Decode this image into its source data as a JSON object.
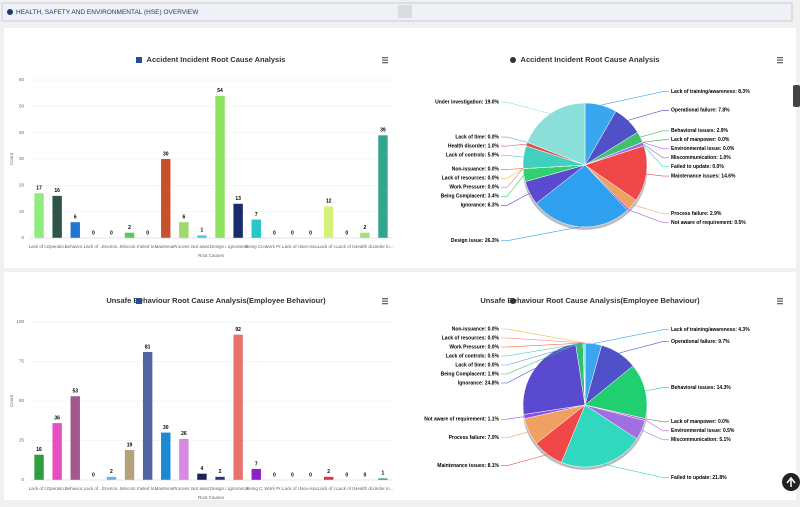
{
  "header": {
    "title": "HEALTH, SAFETY AND ENVIRONMENTAL (HSE) OVERVIEW"
  },
  "chart_data": [
    {
      "type": "bar",
      "title": "Accident Incident Root Cause Analysis",
      "x_label": "Root Causes",
      "y_label": "Count",
      "categories": [
        "Lack of t...",
        "Operatio...",
        "Behavior...",
        "Lack of ...",
        "Environ...",
        "Miscom...",
        "Failed to...",
        "Maintena...",
        "Process ...",
        "Not awar...",
        "Design i...",
        "Ignorance",
        "Being Co...",
        "Work Pr...",
        "Lack of r...",
        "Non-issu...",
        "Lack of c...",
        "Lack of t...",
        "Health di...",
        "Under in..."
      ],
      "values": [
        17,
        16,
        6,
        0,
        0,
        2,
        0,
        30,
        6,
        1,
        54,
        13,
        7,
        0,
        0,
        0,
        12,
        0,
        2,
        39
      ],
      "colors": [
        "#90ed7d",
        "#2f5546",
        "#1f77d0",
        "#999999",
        "#888888",
        "#5bc85b",
        "#aaaaaa",
        "#c9502c",
        "#9fd96a",
        "#4dc9e6",
        "#8fe35d",
        "#1b2a6b",
        "#27c7c7",
        "#aaaaaa",
        "#aaaaaa",
        "#aaaaaa",
        "#d6f07c",
        "#aaaaaa",
        "#a5e07a",
        "#33a68e"
      ],
      "ylim": [
        0,
        60
      ],
      "yticks": [
        0,
        10,
        20,
        30,
        40,
        50,
        60
      ]
    },
    {
      "type": "pie",
      "title": "Accident Incident Root Cause Analysis",
      "categories": [
        "Lack of training/awareness",
        "Operational failure",
        "Behavioral issues",
        "Lack of manpower",
        "Environmental issue",
        "Miscommunication",
        "Failed to update",
        "Maintenance issues",
        "Process failure",
        "Not aware of requirement",
        "Design issue",
        "Ignorance",
        "Being Complacent",
        "Non-issuance",
        "Lack of resources",
        "Work Pressure",
        "Lack of controls",
        "Health disorder",
        "Lack of time",
        "Under investigation"
      ],
      "values": [
        8.3,
        7.8,
        2.9,
        0.0,
        0.0,
        1.0,
        0.0,
        14.6,
        2.9,
        0.5,
        26.3,
        6.3,
        3.4,
        0.0,
        0.0,
        0.0,
        5.9,
        1.0,
        0.0,
        19.0
      ],
      "value_labels": [
        "Lack of training/awareness: 8.3%",
        "Operational failure: 7.8%",
        "Behavioral issues: 2.9%",
        "Lack of manpower: 0.0%",
        "Environmental issue: 0.0%",
        "Miscommunication: 1.0%",
        "Failed to update: 0.0%",
        "Maintenance issues: 14.6%",
        "Process failure: 2.9%",
        "Not aware of requirement: 0.5%",
        "Design issue: 26.3%",
        "Ignorance: 6.3%",
        "Being Complacent: 3.4%",
        "Non-issuance: 0.0%",
        "Lack of resources: 0.0%",
        "Work Pressure: 0.0%",
        "Lack of controls: 5.9%",
        "Health disorder: 1.0%",
        "Lack of time: 0.0%",
        "Under investigation: 19.0%"
      ],
      "colors": [
        "#3aa6f0",
        "#5050c8",
        "#40c070",
        "#30a030",
        "#c050f0",
        "#a070e0",
        "#30d8c0",
        "#f04848",
        "#f0a060",
        "#a050e0",
        "#2f9ff0",
        "#5a4ad0",
        "#30d070",
        "#f06030",
        "#e0c040",
        "#f08080",
        "#40d0c0",
        "#e05050",
        "#60a0f0",
        "#8ae0d8"
      ]
    },
    {
      "type": "bar",
      "title": "Unsafe Behaviour Root Cause Analysis(Employee Behaviour)",
      "x_label": "Root Causes",
      "y_label": "Count",
      "categories": [
        "Lack of t...",
        "Operatio...",
        "Behavior...",
        "Lack of ...",
        "Environ...",
        "Miscom...",
        "Failed to...",
        "Maintena...",
        "Process ...",
        "Not awar...",
        "Design i...",
        "Ignorance",
        "Being C...",
        "Work Pr...",
        "Lack of r...",
        "Non-issu...",
        "Lack of c...",
        "Lack of t...",
        "Health di...",
        "Under in..."
      ],
      "values": [
        16,
        36,
        53,
        0,
        2,
        19,
        81,
        30,
        26,
        4,
        2,
        92,
        7,
        0,
        0,
        0,
        2,
        0,
        0,
        1
      ],
      "colors": [
        "#2e9e3e",
        "#e64fc4",
        "#a0588e",
        "#999999",
        "#6fb0e0",
        "#b5a27d",
        "#5166a0",
        "#1a8ad4",
        "#d68ae0",
        "#1c2250",
        "#2a3480",
        "#e8736c",
        "#8a22c8",
        "#aaaaaa",
        "#aaaaaa",
        "#aaaaaa",
        "#e03050",
        "#aaaaaa",
        "#aaaaaa",
        "#3a9a50"
      ],
      "ylim": [
        0,
        100
      ],
      "yticks": [
        0,
        25,
        50,
        75,
        100
      ]
    },
    {
      "type": "pie",
      "title": "Unsafe Behaviour Root Cause Analysis(Employee Behaviour)",
      "categories": [
        "Lack of training/awareness",
        "Operational failure",
        "Behavioral issues",
        "Lack of manpower",
        "Environmental issue",
        "Miscommunication",
        "Failed to update",
        "Maintenance issues",
        "Process failure",
        "Not aware of requirement",
        "Ignorance",
        "Being Complacent",
        "Lack of time",
        "Lack of controls",
        "Non-issuance",
        "Lack of resources",
        "Work Pressure"
      ],
      "values": [
        4.3,
        9.7,
        14.3,
        0.0,
        0.5,
        5.1,
        21.8,
        8.1,
        7.0,
        1.1,
        24.8,
        1.9,
        0.0,
        0.5,
        0.0,
        0.0,
        0.0
      ],
      "value_labels": [
        "Lack of training/awareness: 4.3%",
        "Operational failure: 9.7%",
        "Behavioral issues: 14.3%",
        "Lack of manpower: 0.0%",
        "Environmental issue: 0.5%",
        "Miscommunication: 5.1%",
        "Failed to update: 21.8%",
        "Maintenance issues: 8.1%",
        "Process failure: 7.0%",
        "Not aware of requirement: 1.1%",
        "Ignorance: 24.8%",
        "Being Complacent: 1.9%",
        "Lack of time: 0.0%",
        "Lack of controls: 0.5%",
        "Non-issuance: 0.0%",
        "Lack of resources: 0.0%",
        "Work Pressure: 0.0%"
      ],
      "colors": [
        "#3aa6f0",
        "#5050c8",
        "#20d070",
        "#30a030",
        "#c050f0",
        "#a070e0",
        "#30d8c0",
        "#f04848",
        "#f0a060",
        "#8a50e0",
        "#5a4ad0",
        "#30c070",
        "#60a0f0",
        "#40d0c0",
        "#e0c040",
        "#f08080",
        "#f06030"
      ]
    }
  ]
}
